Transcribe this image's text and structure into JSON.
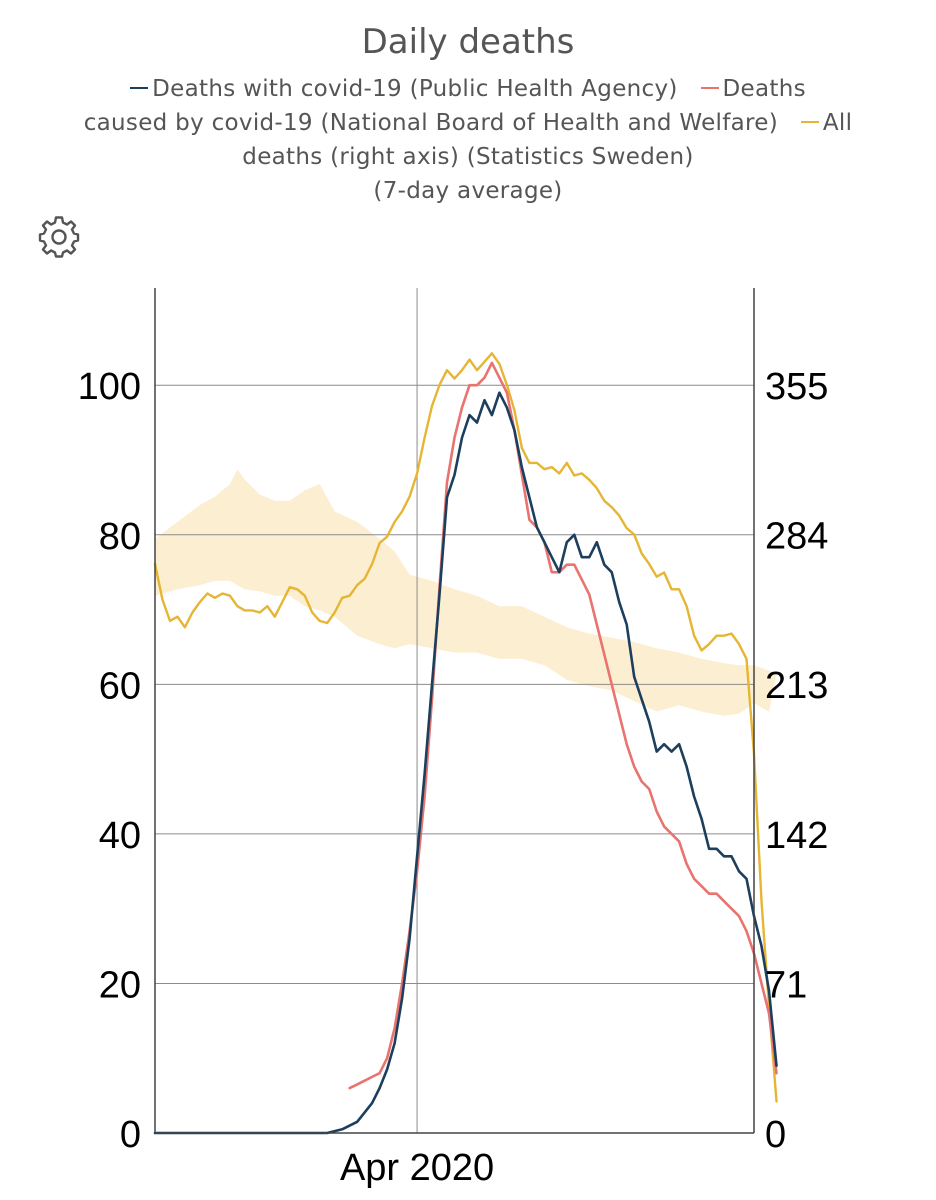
{
  "chart_data": {
    "type": "line",
    "title": "Daily deaths",
    "legend": [
      {
        "name": "Deaths with covid-19 (Public Health Agency)",
        "color": "#1c3f5e"
      },
      {
        "name": "Deaths caused by covid-19 (National Board of Health and Welfare)",
        "color": "#e8736f"
      },
      {
        "name": "All deaths (right axis) (Statistics Sweden)",
        "color": "#e6b533"
      }
    ],
    "legend_note": "(7-day average)",
    "legend_lines": [
      {
        "segments": [
          {
            "series": 0,
            "text": "Deaths with covid-19 (Public Health Agency)"
          },
          {
            "series": 1,
            "text": "Deaths"
          }
        ]
      },
      {
        "segments": [
          {
            "series": null,
            "text": "caused by covid-19 (National Board of Health and Welfare)"
          },
          {
            "series": 2,
            "text": "All"
          }
        ]
      },
      {
        "segments": [
          {
            "series": null,
            "text": "deaths (right axis) (Statistics Sweden)"
          }
        ]
      },
      {
        "segments": [
          {
            "series": null,
            "text": "(7-day average)"
          }
        ]
      }
    ],
    "x_axis": {
      "domain": [
        -35,
        45
      ],
      "label_day": 0,
      "label": "Apr 2020"
    },
    "y_left": {
      "range": [
        0,
        113
      ],
      "ticks": [
        0,
        20,
        40,
        60,
        80,
        100
      ]
    },
    "y_right": {
      "range": [
        0,
        401
      ],
      "ticks": [
        0,
        71,
        142,
        213,
        284,
        355
      ]
    },
    "series": [
      {
        "name": "Deaths with covid-19 (Public Health Agency)",
        "axis": "left",
        "points": [
          [
            -35,
            0
          ],
          [
            -23,
            0
          ],
          [
            -12,
            0
          ],
          [
            -10,
            0.5
          ],
          [
            -8,
            1.5
          ],
          [
            -6,
            4
          ],
          [
            -5,
            6
          ],
          [
            -4,
            8.5
          ],
          [
            -3,
            12
          ],
          [
            -2,
            18
          ],
          [
            -1,
            26
          ],
          [
            0,
            37
          ],
          [
            1,
            48
          ],
          [
            2,
            60
          ],
          [
            3,
            72
          ],
          [
            4,
            85
          ],
          [
            5,
            88
          ],
          [
            6,
            93
          ],
          [
            7,
            96
          ],
          [
            8,
            95
          ],
          [
            9,
            98
          ],
          [
            10,
            96
          ],
          [
            11,
            99
          ],
          [
            12,
            97
          ],
          [
            13,
            94
          ],
          [
            14,
            89
          ],
          [
            15,
            85
          ],
          [
            16,
            81
          ],
          [
            17,
            79
          ],
          [
            18,
            77
          ],
          [
            19,
            75
          ],
          [
            20,
            79
          ],
          [
            21,
            80
          ],
          [
            22,
            77
          ],
          [
            23,
            77
          ],
          [
            24,
            79
          ],
          [
            25,
            76
          ],
          [
            26,
            75
          ],
          [
            27,
            71
          ],
          [
            28,
            68
          ],
          [
            29,
            61
          ],
          [
            30,
            58
          ],
          [
            31,
            55
          ],
          [
            32,
            51
          ],
          [
            33,
            52
          ],
          [
            34,
            51
          ],
          [
            35,
            52
          ],
          [
            36,
            49
          ],
          [
            37,
            45
          ],
          [
            38,
            42
          ],
          [
            39,
            38
          ],
          [
            40,
            38
          ],
          [
            41,
            37
          ],
          [
            42,
            37
          ],
          [
            43,
            35
          ],
          [
            44,
            34
          ],
          [
            45,
            29
          ],
          [
            46,
            25
          ],
          [
            47,
            19
          ],
          [
            48,
            9
          ]
        ]
      },
      {
        "name": "Deaths caused by covid-19 (National Board of Health and Welfare)",
        "axis": "left",
        "points": [
          [
            -9,
            6
          ],
          [
            -8,
            6.5
          ],
          [
            -7,
            7
          ],
          [
            -6,
            7.5
          ],
          [
            -5,
            8
          ],
          [
            -4,
            10
          ],
          [
            -3,
            14
          ],
          [
            -2,
            20
          ],
          [
            -1,
            27
          ],
          [
            0,
            35
          ],
          [
            1,
            45
          ],
          [
            2,
            58
          ],
          [
            3,
            73
          ],
          [
            4,
            87
          ],
          [
            5,
            93
          ],
          [
            6,
            97
          ],
          [
            7,
            100
          ],
          [
            8,
            100
          ],
          [
            9,
            101
          ],
          [
            10,
            103
          ],
          [
            11,
            101
          ],
          [
            12,
            99
          ],
          [
            13,
            94
          ],
          [
            14,
            88
          ],
          [
            15,
            82
          ],
          [
            16,
            81
          ],
          [
            17,
            79
          ],
          [
            18,
            75
          ],
          [
            19,
            75
          ],
          [
            20,
            76
          ],
          [
            21,
            76
          ],
          [
            22,
            74
          ],
          [
            23,
            72
          ],
          [
            24,
            68
          ],
          [
            25,
            64
          ],
          [
            26,
            60
          ],
          [
            27,
            56
          ],
          [
            28,
            52
          ],
          [
            29,
            49
          ],
          [
            30,
            47
          ],
          [
            31,
            46
          ],
          [
            32,
            43
          ],
          [
            33,
            41
          ],
          [
            34,
            40
          ],
          [
            35,
            39
          ],
          [
            36,
            36
          ],
          [
            37,
            34
          ],
          [
            38,
            33
          ],
          [
            39,
            32
          ],
          [
            40,
            32
          ],
          [
            41,
            31
          ],
          [
            42,
            30
          ],
          [
            43,
            29
          ],
          [
            44,
            27
          ],
          [
            45,
            24
          ],
          [
            46,
            20
          ],
          [
            47,
            16
          ],
          [
            48,
            8
          ]
        ]
      },
      {
        "name": "All deaths (right axis) (Statistics Sweden)",
        "axis": "right",
        "points": [
          [
            -35,
            270
          ],
          [
            -34,
            253
          ],
          [
            -33,
            243
          ],
          [
            -32,
            245
          ],
          [
            -31,
            240
          ],
          [
            -30,
            247
          ],
          [
            -29,
            252
          ],
          [
            -28,
            256
          ],
          [
            -27,
            254
          ],
          [
            -26,
            256
          ],
          [
            -25,
            255
          ],
          [
            -24,
            250
          ],
          [
            -23,
            248
          ],
          [
            -22,
            248
          ],
          [
            -21,
            247
          ],
          [
            -20,
            250
          ],
          [
            -19,
            245
          ],
          [
            -18,
            252
          ],
          [
            -17,
            259
          ],
          [
            -16,
            258
          ],
          [
            -15,
            255
          ],
          [
            -14,
            247
          ],
          [
            -13,
            243
          ],
          [
            -12,
            242
          ],
          [
            -11,
            247
          ],
          [
            -10,
            254
          ],
          [
            -9,
            255
          ],
          [
            -8,
            260
          ],
          [
            -7,
            263
          ],
          [
            -6,
            270
          ],
          [
            -5,
            280
          ],
          [
            -4,
            283
          ],
          [
            -3,
            290
          ],
          [
            -2,
            295
          ],
          [
            -1,
            302
          ],
          [
            0,
            313
          ],
          [
            1,
            330
          ],
          [
            2,
            345
          ],
          [
            3,
            355
          ],
          [
            4,
            362
          ],
          [
            5,
            358
          ],
          [
            6,
            362
          ],
          [
            7,
            367
          ],
          [
            8,
            362
          ],
          [
            9,
            366
          ],
          [
            10,
            370
          ],
          [
            11,
            365
          ],
          [
            12,
            355
          ],
          [
            13,
            343
          ],
          [
            14,
            325
          ],
          [
            15,
            318
          ],
          [
            16,
            318
          ],
          [
            17,
            315
          ],
          [
            18,
            316
          ],
          [
            19,
            313
          ],
          [
            20,
            318
          ],
          [
            21,
            312
          ],
          [
            22,
            313
          ],
          [
            23,
            310
          ],
          [
            24,
            306
          ],
          [
            25,
            300
          ],
          [
            26,
            297
          ],
          [
            27,
            293
          ],
          [
            28,
            287
          ],
          [
            29,
            284
          ],
          [
            30,
            275
          ],
          [
            31,
            270
          ],
          [
            32,
            264
          ],
          [
            33,
            266
          ],
          [
            34,
            258
          ],
          [
            35,
            258
          ],
          [
            36,
            250
          ],
          [
            37,
            236
          ],
          [
            38,
            229
          ],
          [
            39,
            232
          ],
          [
            40,
            236
          ],
          [
            41,
            236
          ],
          [
            42,
            237
          ],
          [
            43,
            232
          ],
          [
            44,
            225
          ],
          [
            45,
            180
          ],
          [
            46,
            110
          ],
          [
            47,
            60
          ],
          [
            48,
            15
          ]
        ]
      }
    ],
    "baseline_band": {
      "name": "Typical range of all deaths (right axis)",
      "axis": "right",
      "upper": [
        [
          -35,
          282
        ],
        [
          -32,
          290
        ],
        [
          -29,
          298
        ],
        [
          -27,
          302
        ],
        [
          -25,
          308
        ],
        [
          -24,
          315
        ],
        [
          -23,
          310
        ],
        [
          -21,
          303
        ],
        [
          -19,
          300
        ],
        [
          -17,
          300
        ],
        [
          -15,
          305
        ],
        [
          -13,
          308
        ],
        [
          -11,
          295
        ],
        [
          -8,
          290
        ],
        [
          -5,
          282
        ],
        [
          -3,
          276
        ],
        [
          -1,
          265
        ],
        [
          2,
          262
        ],
        [
          5,
          258
        ],
        [
          8,
          255
        ],
        [
          11,
          250
        ],
        [
          14,
          250
        ],
        [
          17,
          245
        ],
        [
          20,
          240
        ],
        [
          23,
          237
        ],
        [
          26,
          235
        ],
        [
          29,
          233
        ],
        [
          32,
          230
        ],
        [
          35,
          228
        ],
        [
          38,
          225
        ],
        [
          41,
          223
        ],
        [
          43,
          222
        ],
        [
          45,
          222
        ],
        [
          48,
          218
        ]
      ],
      "lower": [
        [
          -35,
          255
        ],
        [
          -32,
          258
        ],
        [
          -29,
          260
        ],
        [
          -27,
          262
        ],
        [
          -25,
          262
        ],
        [
          -23,
          258
        ],
        [
          -21,
          257
        ],
        [
          -19,
          255
        ],
        [
          -17,
          255
        ],
        [
          -15,
          250
        ],
        [
          -13,
          248
        ],
        [
          -11,
          245
        ],
        [
          -8,
          236
        ],
        [
          -5,
          232
        ],
        [
          -3,
          230
        ],
        [
          -1,
          232
        ],
        [
          2,
          230
        ],
        [
          5,
          228
        ],
        [
          8,
          228
        ],
        [
          11,
          225
        ],
        [
          14,
          225
        ],
        [
          17,
          222
        ],
        [
          20,
          215
        ],
        [
          23,
          212
        ],
        [
          26,
          210
        ],
        [
          29,
          205
        ],
        [
          32,
          200
        ],
        [
          35,
          203
        ],
        [
          38,
          200
        ],
        [
          41,
          198
        ],
        [
          43,
          199
        ],
        [
          45,
          204
        ],
        [
          47,
          200
        ]
      ]
    }
  }
}
